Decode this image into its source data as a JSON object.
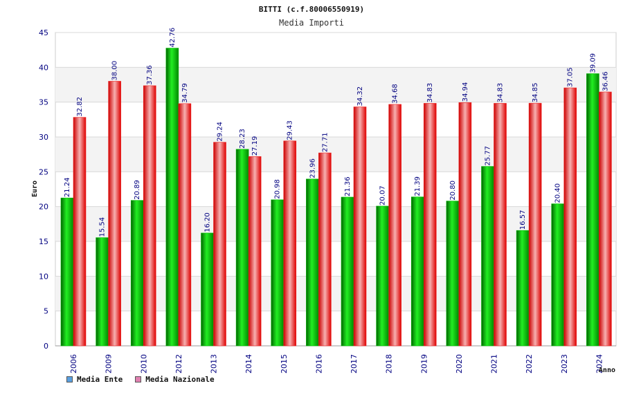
{
  "chart_data": {
    "type": "bar",
    "title": "BITTI (c.f.80006550919)",
    "subtitle": "Media Importi",
    "xlabel": "Anno",
    "ylabel": "Euro",
    "ylim": [
      0,
      45
    ],
    "yticks": [
      0,
      5,
      10,
      15,
      20,
      25,
      30,
      35,
      40,
      45
    ],
    "grid": true,
    "legend_position": "bottom-left",
    "categories": [
      "2006",
      "2009",
      "2010",
      "2012",
      "2013",
      "2014",
      "2015",
      "2016",
      "2017",
      "2018",
      "2019",
      "2020",
      "2021",
      "2022",
      "2023",
      "2024"
    ],
    "series": [
      {
        "name": "Media Ente",
        "color": "#00bb00",
        "legend_color": "#5aa0e0",
        "values": [
          21.24,
          15.54,
          20.89,
          42.76,
          16.2,
          28.23,
          20.98,
          23.96,
          21.36,
          20.07,
          21.39,
          20.8,
          25.77,
          16.57,
          20.4,
          39.09
        ],
        "labels": [
          "21.24",
          "15.54",
          "20.89",
          "42.76",
          "16.20",
          "28.23",
          "20.98",
          "23.96",
          "21.36",
          "20.07",
          "21.39",
          "20.80",
          "25.77",
          "16.57",
          "20.40",
          "39.09"
        ]
      },
      {
        "name": "Media Nazionale",
        "color": "#ee2222",
        "legend_color": "#e080b0",
        "values": [
          32.82,
          38.0,
          37.36,
          34.79,
          29.24,
          27.19,
          29.43,
          27.71,
          34.32,
          34.68,
          34.83,
          34.94,
          34.83,
          34.85,
          37.05,
          36.46
        ],
        "labels": [
          "32.82",
          "38.00",
          "37.36",
          "34.79",
          "29.24",
          "27.19",
          "29.43",
          "27.71",
          "34.32",
          "34.68",
          "34.83",
          "34.94",
          "34.83",
          "34.85",
          "37.05",
          "36.46"
        ]
      }
    ]
  }
}
